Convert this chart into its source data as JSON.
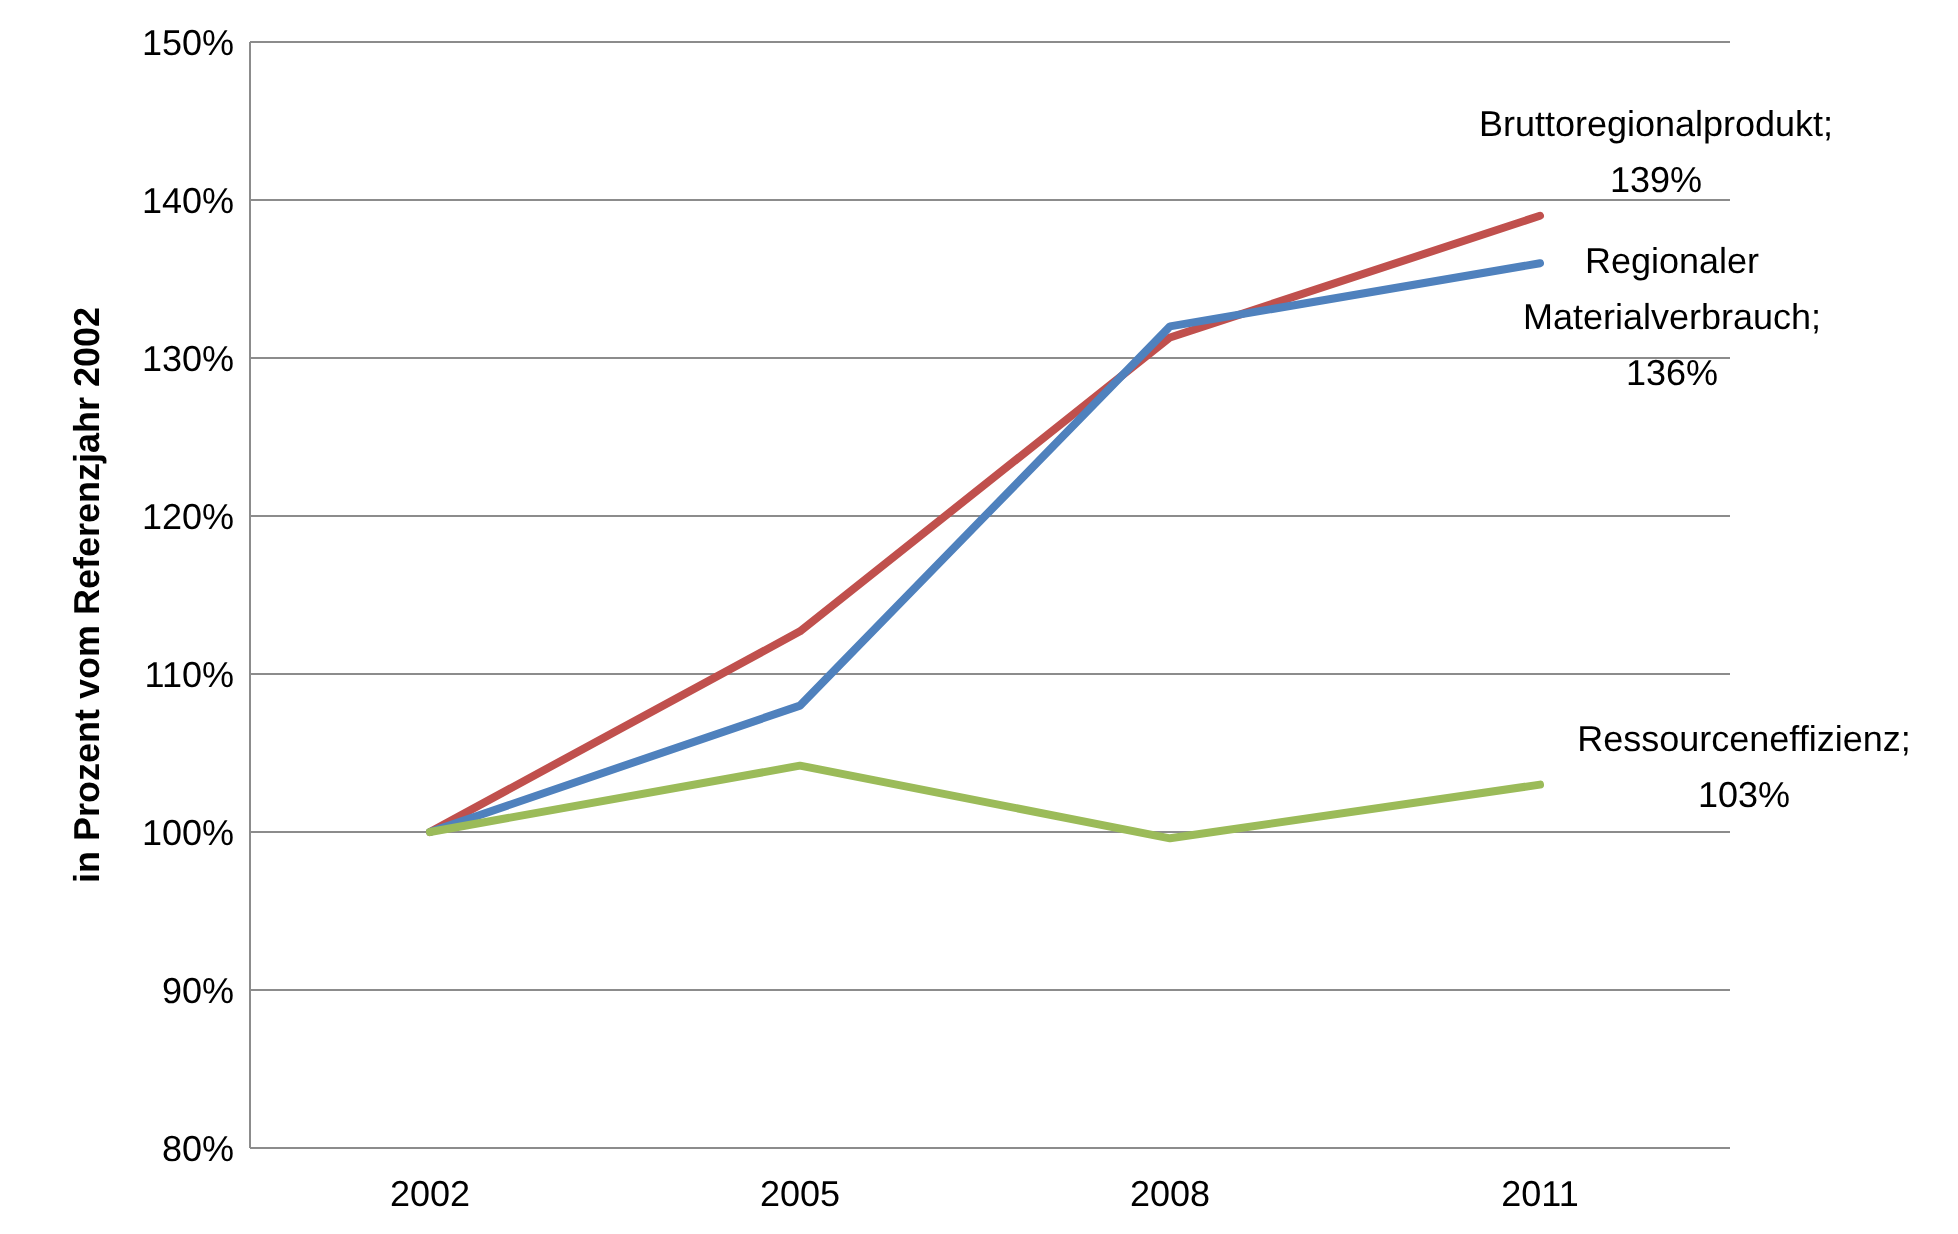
{
  "chart_data": {
    "type": "line",
    "ylabel": "in Prozent vom Referenzjahr 2002",
    "categories": [
      "2002",
      "2005",
      "2008",
      "2011"
    ],
    "series": [
      {
        "color": "#c0504d",
        "values": [
          100,
          112.7,
          131.3,
          139
        ]
      },
      {
        "color": "#4f81bd",
        "values": [
          100,
          108,
          132,
          136
        ]
      },
      {
        "color": "#9bbb59",
        "values": [
          100,
          104.2,
          99.6,
          103
        ]
      }
    ],
    "ylim": [
      80,
      150
    ],
    "yticks": [
      {
        "value": 80,
        "label": "80%"
      },
      {
        "value": 90,
        "label": "90%"
      },
      {
        "value": 100,
        "label": "100%"
      },
      {
        "value": 110,
        "label": "110%"
      },
      {
        "value": 120,
        "label": "120%"
      },
      {
        "value": 130,
        "label": "130%"
      },
      {
        "value": 140,
        "label": "140%"
      },
      {
        "value": 150,
        "label": "150%"
      }
    ],
    "grid": "y",
    "legend": false,
    "marker": "none",
    "line_style": "solid",
    "annotations": [
      {
        "text": "Bruttoregionalprodukt;\n139%",
        "x": "2011",
        "y": 139
      },
      {
        "text": "Regionaler\nMaterialverbrauch;\n136%",
        "x": "2011",
        "y": 136
      },
      {
        "text": "Ressourceneffizienz;\n103%",
        "x": "2011",
        "y": 103
      }
    ]
  }
}
